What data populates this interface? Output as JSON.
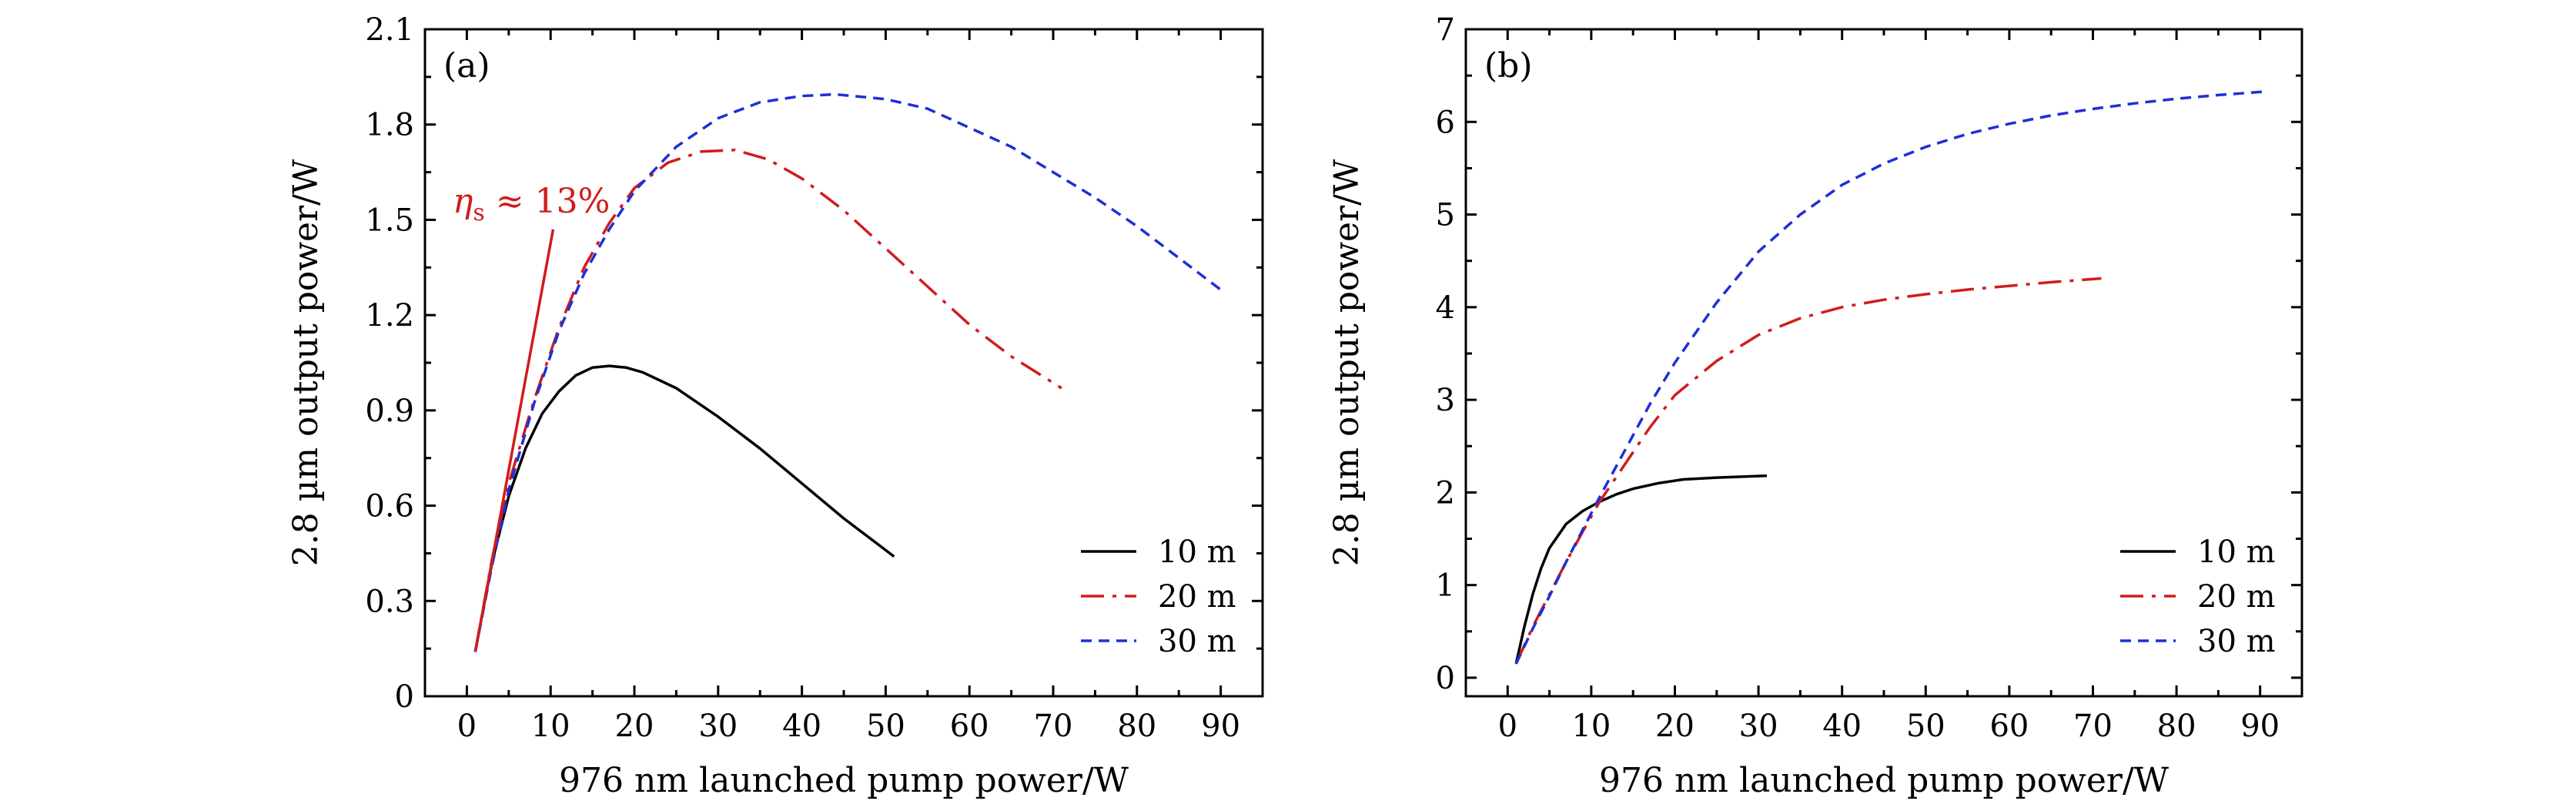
{
  "chart_data": [
    {
      "type": "line",
      "panel_label": "(a)",
      "xlabel": "976 nm launched pump power/W",
      "ylabel": "2.8 µm output power/W",
      "xlim": [
        -5,
        95
      ],
      "ylim": [
        0,
        2.1
      ],
      "xticks": [
        "0",
        "10",
        "20",
        "30",
        "40",
        "50",
        "60",
        "70",
        "80",
        "90"
      ],
      "yticks": [
        "0",
        "0.3",
        "0.6",
        "0.9",
        "1.2",
        "1.5",
        "1.8",
        "2.1"
      ],
      "legend_position": "bottom-right",
      "annotation": {
        "text_main": "η",
        "text_sub": "s",
        "text_rest": " ≈ 13%",
        "color": "#d01c1c",
        "line_from": [
          1,
          0.14
        ],
        "line_to": [
          10.3,
          1.47
        ]
      },
      "series": [
        {
          "name": "10 m",
          "color": "#000000",
          "dash": "solid",
          "x": [
            1,
            3,
            5,
            7,
            9,
            11,
            13,
            15,
            17,
            19,
            21,
            25,
            30,
            35,
            40,
            45,
            51
          ],
          "y": [
            0.14,
            0.42,
            0.63,
            0.78,
            0.89,
            0.96,
            1.01,
            1.035,
            1.04,
            1.035,
            1.02,
            0.97,
            0.88,
            0.78,
            0.67,
            0.56,
            0.44
          ]
        },
        {
          "name": "20 m",
          "color": "#d01c1c",
          "dash": "dashdot",
          "x": [
            1,
            3,
            5,
            8,
            11,
            14,
            17,
            20,
            24,
            28,
            32,
            36,
            40,
            45,
            50,
            55,
            60,
            65,
            71
          ],
          "y": [
            0.14,
            0.43,
            0.67,
            0.93,
            1.16,
            1.35,
            1.49,
            1.6,
            1.68,
            1.715,
            1.72,
            1.69,
            1.63,
            1.53,
            1.41,
            1.29,
            1.17,
            1.07,
            0.97
          ]
        },
        {
          "name": "30 m",
          "color": "#1f2fd6",
          "dash": "dashed",
          "x": [
            1,
            3,
            5,
            8,
            11,
            14,
            17,
            20,
            25,
            30,
            35,
            40,
            44,
            50,
            55,
            60,
            65,
            70,
            75,
            80,
            85,
            90
          ],
          "y": [
            0.14,
            0.41,
            0.65,
            0.92,
            1.15,
            1.33,
            1.47,
            1.59,
            1.73,
            1.82,
            1.87,
            1.89,
            1.895,
            1.88,
            1.85,
            1.79,
            1.73,
            1.65,
            1.57,
            1.48,
            1.38,
            1.28
          ]
        }
      ]
    },
    {
      "type": "line",
      "panel_label": "(b)",
      "xlabel": "976 nm launched pump power/W",
      "ylabel": "2.8 µm output power/W",
      "xlim": [
        -5,
        95
      ],
      "ylim": [
        -0.2,
        7
      ],
      "xticks": [
        "0",
        "10",
        "20",
        "30",
        "40",
        "50",
        "60",
        "70",
        "80",
        "90"
      ],
      "yticks": [
        "0",
        "1",
        "2",
        "3",
        "4",
        "5",
        "6",
        "7"
      ],
      "legend_position": "bottom-right",
      "series": [
        {
          "name": "10 m",
          "color": "#000000",
          "dash": "solid",
          "x": [
            1,
            2,
            3,
            4,
            5,
            7,
            9,
            11,
            13,
            15,
            18,
            21,
            25,
            31
          ],
          "y": [
            0.15,
            0.55,
            0.9,
            1.18,
            1.4,
            1.66,
            1.8,
            1.9,
            1.98,
            2.04,
            2.1,
            2.14,
            2.16,
            2.18
          ]
        },
        {
          "name": "20 m",
          "color": "#d01c1c",
          "dash": "dashdot",
          "x": [
            1,
            3,
            5,
            7,
            9,
            11,
            14,
            17,
            20,
            25,
            30,
            35,
            40,
            45,
            50,
            55,
            60,
            65,
            71
          ],
          "y": [
            0.15,
            0.55,
            0.9,
            1.25,
            1.58,
            1.9,
            2.3,
            2.7,
            3.05,
            3.42,
            3.7,
            3.88,
            4.0,
            4.08,
            4.14,
            4.19,
            4.23,
            4.27,
            4.31
          ]
        },
        {
          "name": "30 m",
          "color": "#1f2fd6",
          "dash": "dashed",
          "x": [
            1,
            3,
            5,
            7,
            9,
            11,
            14,
            17,
            20,
            25,
            30,
            35,
            40,
            45,
            50,
            55,
            60,
            65,
            70,
            75,
            80,
            85,
            91
          ],
          "y": [
            0.15,
            0.53,
            0.88,
            1.25,
            1.6,
            1.95,
            2.45,
            2.95,
            3.4,
            4.05,
            4.6,
            5.0,
            5.32,
            5.55,
            5.73,
            5.87,
            5.98,
            6.07,
            6.14,
            6.2,
            6.25,
            6.29,
            6.33
          ]
        }
      ]
    }
  ]
}
